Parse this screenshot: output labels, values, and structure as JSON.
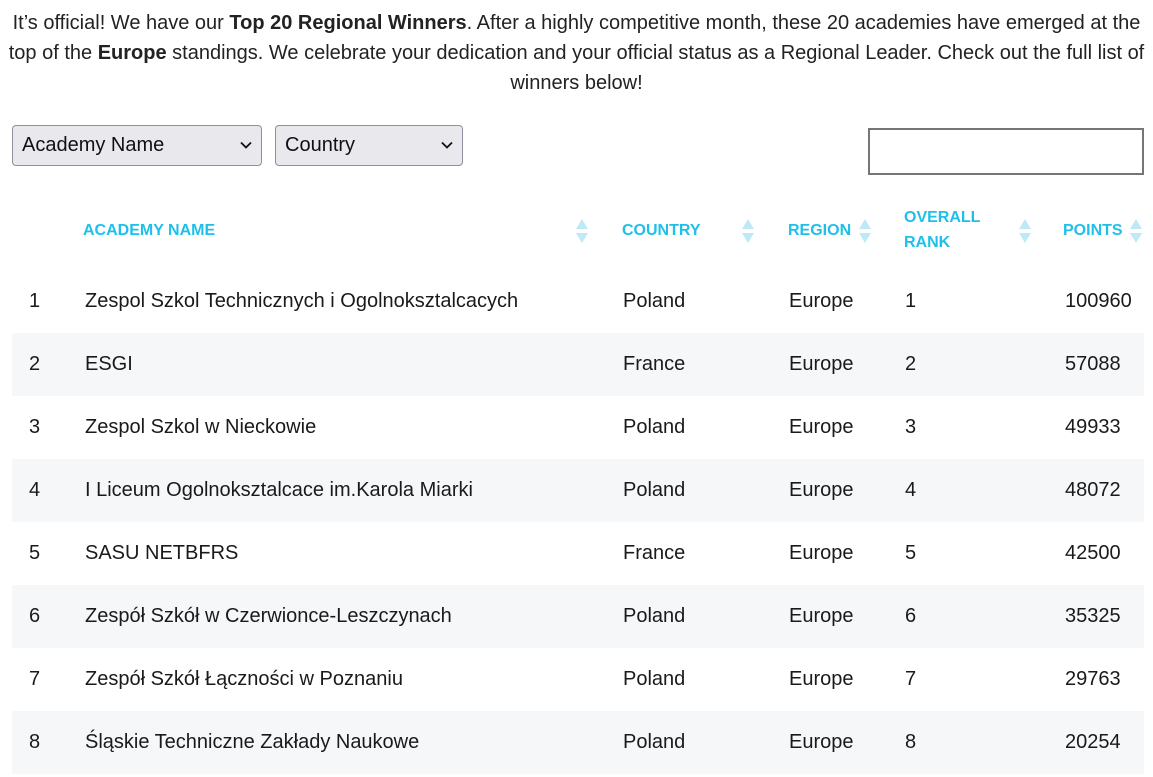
{
  "intro": {
    "part1": "It’s official! We have our ",
    "bold1": "Top 20 Regional Winners",
    "part2": ". After a highly competitive month, these 20 academies have emerged at the top of the ",
    "bold2": "Europe",
    "part3": " standings. We celebrate your dedication and your official status as a Regional Leader. Check out the full list of winners below!"
  },
  "filters": {
    "academy_select": "Academy Name",
    "country_select": "Country",
    "search_value": ""
  },
  "colors": {
    "header": "#1ec0ea",
    "alt_row": "#f6f7f9"
  },
  "table": {
    "headers": {
      "academy": "ACADEMY NAME",
      "country": "COUNTRY",
      "region": "REGION",
      "rank_line1": "OVERALL",
      "rank_line2": "RANK",
      "points": "POINTS"
    },
    "rows": [
      {
        "num": "1",
        "name": "Zespol Szkol Technicznych i Ogolnokszta​lcacych",
        "country": "Poland",
        "region": "Europe",
        "rank": "1",
        "points": "100960"
      },
      {
        "num": "2",
        "name": "ESGI",
        "country": "France",
        "region": "Europe",
        "rank": "2",
        "points": "57088"
      },
      {
        "num": "3",
        "name": "Zespol Szkol w Nieckowie",
        "country": "Poland",
        "region": "Europe",
        "rank": "3",
        "points": "49933"
      },
      {
        "num": "4",
        "name": "I Liceum Ogolnokszta​lcace im.Karola Miarki",
        "country": "Poland",
        "region": "Europe",
        "rank": "4",
        "points": "48072"
      },
      {
        "num": "5",
        "name": "SASU NETBFRS",
        "country": "France",
        "region": "Europe",
        "rank": "5",
        "points": "42500"
      },
      {
        "num": "6",
        "name": "Zespół Szkół w Czerwionce-Leszczynach",
        "country": "Poland",
        "region": "Europe",
        "rank": "6",
        "points": "35325"
      },
      {
        "num": "7",
        "name": "Zespół Szkół Łączności w Poznaniu",
        "country": "Poland",
        "region": "Europe",
        "rank": "7",
        "points": "29763"
      },
      {
        "num": "8",
        "name": "Śląskie Techniczne Zakłady Naukowe",
        "country": "Poland",
        "region": "Europe",
        "rank": "8",
        "points": "20254"
      }
    ]
  }
}
